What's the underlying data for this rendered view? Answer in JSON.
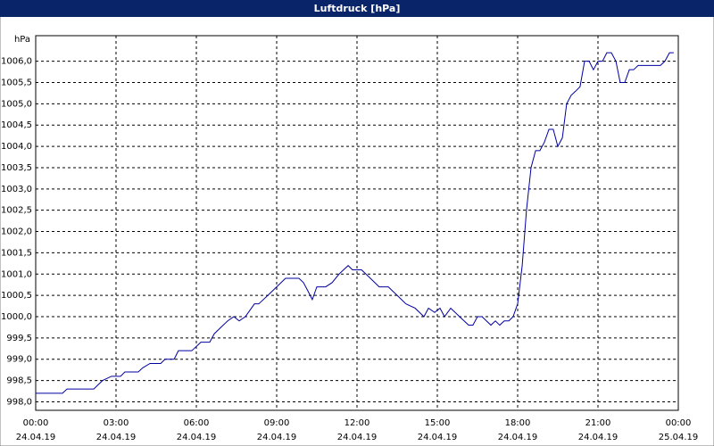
{
  "chart_data": {
    "type": "line",
    "title": "Luftdruck [hPa]",
    "y_unit": "hPa",
    "xlim": [
      0,
      24
    ],
    "xticks": [
      {
        "value": 0,
        "label": "00:00",
        "date": "24.04.19"
      },
      {
        "value": 3,
        "label": "03:00",
        "date": "24.04.19"
      },
      {
        "value": 6,
        "label": "06:00",
        "date": "24.04.19"
      },
      {
        "value": 9,
        "label": "09:00",
        "date": "24.04.19"
      },
      {
        "value": 12,
        "label": "12:00",
        "date": "24.04.19"
      },
      {
        "value": 15,
        "label": "15:00",
        "date": "24.04.19"
      },
      {
        "value": 18,
        "label": "18:00",
        "date": "24.04.19"
      },
      {
        "value": 21,
        "label": "21:00",
        "date": "24.04.19"
      },
      {
        "value": 24,
        "label": "00:00",
        "date": "25.04.19"
      }
    ],
    "ylim": [
      997.8,
      1006.6
    ],
    "yticks": [
      {
        "value": 998,
        "label": "998,0"
      },
      {
        "value": 998.5,
        "label": "998,5"
      },
      {
        "value": 999,
        "label": "999,0"
      },
      {
        "value": 999.5,
        "label": "999,5"
      },
      {
        "value": 1000,
        "label": "1000,0"
      },
      {
        "value": 1000.5,
        "label": "1000,5"
      },
      {
        "value": 1001,
        "label": "1001,0"
      },
      {
        "value": 1001.5,
        "label": "1001,5"
      },
      {
        "value": 1002,
        "label": "1002,0"
      },
      {
        "value": 1002.5,
        "label": "1002,5"
      },
      {
        "value": 1003,
        "label": "1003,0"
      },
      {
        "value": 1003.5,
        "label": "1003,5"
      },
      {
        "value": 1004,
        "label": "1004,0"
      },
      {
        "value": 1004.5,
        "label": "1004,5"
      },
      {
        "value": 1005,
        "label": "1005,0"
      },
      {
        "value": 1005.5,
        "label": "1005,5"
      },
      {
        "value": 1006,
        "label": "1006,0"
      }
    ],
    "grid": true,
    "x": [
      0,
      1,
      1.17,
      2.17,
      2.33,
      2.5,
      2.83,
      3.17,
      3.33,
      3.83,
      4,
      4.27,
      4.67,
      4.83,
      5.17,
      5.33,
      5.83,
      6.17,
      6.5,
      6.67,
      7.17,
      7.4,
      7.6,
      7.83,
      8.17,
      8.33,
      8.67,
      9,
      9.33,
      9.83,
      10,
      10.17,
      10.33,
      10.5,
      10.83,
      11.07,
      11.33,
      11.67,
      11.83,
      12.17,
      12.5,
      12.83,
      13.17,
      13.5,
      13.83,
      14.17,
      14.5,
      14.67,
      14.9,
      15.1,
      15.27,
      15.5,
      15.83,
      16,
      16.17,
      16.33,
      16.5,
      16.67,
      17,
      17.17,
      17.33,
      17.5,
      17.67,
      17.83,
      18,
      18.17,
      18.33,
      18.5,
      18.67,
      18.83,
      19,
      19.17,
      19.33,
      19.5,
      19.67,
      19.83,
      20,
      20.17,
      20.33,
      20.5,
      20.67,
      20.83,
      21,
      21.17,
      21.33,
      21.5,
      21.67,
      21.83,
      22,
      22.17,
      22.33,
      22.5,
      23.33,
      23.5,
      23.67,
      23.83
    ],
    "series": [
      {
        "name": "Luftdruck",
        "color": "#0000a0",
        "values": [
          998.2,
          998.2,
          998.3,
          998.3,
          998.4,
          998.5,
          998.6,
          998.6,
          998.7,
          998.7,
          998.8,
          998.9,
          998.9,
          999.0,
          999.0,
          999.2,
          999.2,
          999.4,
          999.4,
          999.6,
          999.9,
          1000.0,
          999.9,
          1000.0,
          1000.3,
          1000.3,
          1000.5,
          1000.7,
          1000.9,
          1000.9,
          1000.8,
          1000.6,
          1000.4,
          1000.7,
          1000.7,
          1000.8,
          1001.0,
          1001.2,
          1001.1,
          1001.1,
          1000.9,
          1000.7,
          1000.7,
          1000.5,
          1000.3,
          1000.2,
          1000.0,
          1000.2,
          1000.1,
          1000.2,
          1000.0,
          1000.2,
          1000.0,
          999.9,
          999.8,
          999.8,
          1000.0,
          1000.0,
          999.8,
          999.9,
          999.8,
          999.9,
          999.9,
          1000.0,
          1000.3,
          1001.2,
          1002.5,
          1003.5,
          1003.9,
          1003.9,
          1004.1,
          1004.4,
          1004.4,
          1004.0,
          1004.2,
          1005.0,
          1005.2,
          1005.3,
          1005.4,
          1006.0,
          1006.0,
          1005.8,
          1006.0,
          1006.0,
          1006.2,
          1006.2,
          1006.0,
          1005.5,
          1005.5,
          1005.8,
          1005.8,
          1005.9,
          1005.9,
          1006.0,
          1006.2,
          1006.2
        ]
      }
    ]
  }
}
